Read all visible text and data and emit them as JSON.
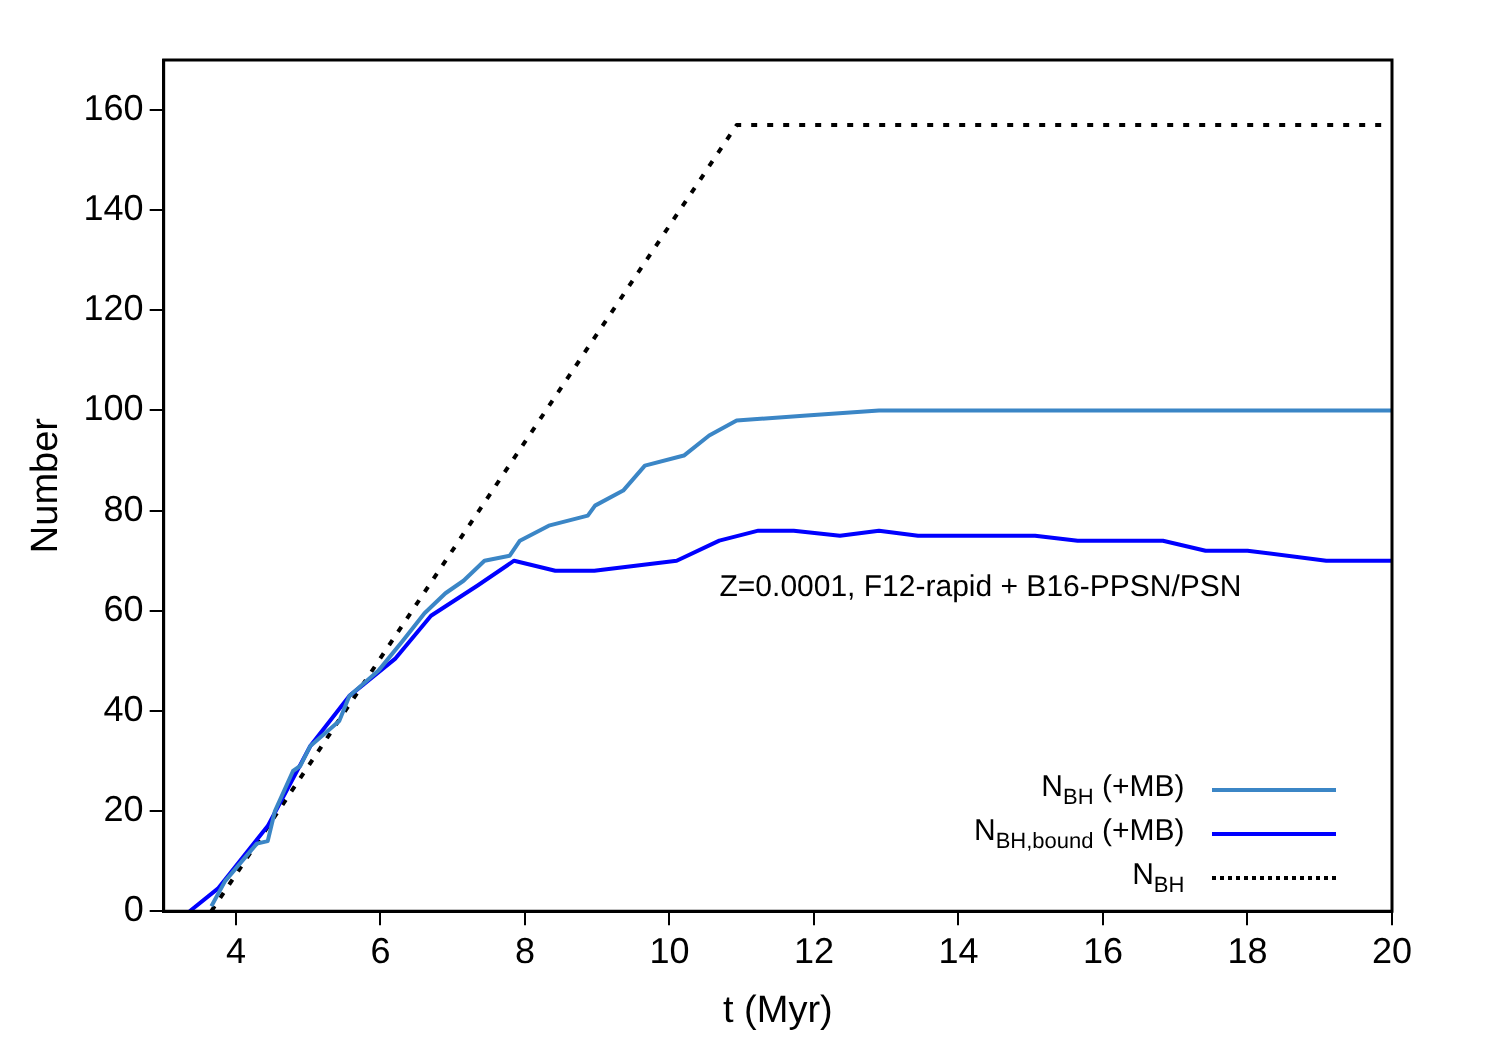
{
  "chart_data": {
    "type": "line",
    "xlabel": "t (Myr)",
    "ylabel": "Number",
    "xlim": [
      3,
      20
    ],
    "xticks": [
      4,
      6,
      8,
      10,
      12,
      14,
      16,
      18,
      20
    ],
    "ylim": [
      0,
      170
    ],
    "yticks": [
      0,
      20,
      40,
      60,
      80,
      100,
      120,
      140,
      160
    ],
    "legend": "bottom right",
    "annotations": [
      "Z=0.0001, F12-rapid + B16-PPSN/PSN"
    ],
    "series": [
      {
        "name": "N$_{BH}$ (+MB)",
        "color": "#3b86c6",
        "line_style": "solid",
        "x": [
          3.66,
          3.85,
          4.29,
          4.44,
          4.54,
          4.79,
          4.89,
          5.03,
          5.43,
          5.57,
          5.97,
          6.31,
          6.61,
          6.9,
          7.15,
          7.44,
          7.79,
          7.93,
          8.33,
          8.87,
          8.97,
          9.36,
          9.66,
          10.2,
          10.55,
          10.93,
          11.9,
          12.9,
          20
        ],
        "values": [
          1,
          6,
          13.5,
          14,
          20,
          28,
          29,
          33,
          38,
          43,
          48,
          54,
          59.5,
          63.5,
          66,
          70,
          71,
          74,
          77,
          79,
          81,
          84,
          89,
          91,
          95,
          98,
          99,
          100,
          100
        ]
      },
      {
        "name": "N$_{BH,bound}$ (+MB)",
        "color": "#0000ff",
        "line_style": "solid",
        "x": [
          3.36,
          3.75,
          4.44,
          5.03,
          5.57,
          6.21,
          6.7,
          7.34,
          7.85,
          8.42,
          8.96,
          10.1,
          10.69,
          11.23,
          11.72,
          12.36,
          12.9,
          13.44,
          15.06,
          15.65,
          16.83,
          17.42,
          18.0,
          19.09,
          20
        ],
        "values": [
          0,
          4.5,
          17,
          33,
          43,
          50.5,
          59,
          65,
          70,
          68,
          68,
          70,
          74,
          76,
          76,
          75,
          76,
          75,
          75,
          74,
          74,
          72,
          72,
          70,
          70
        ]
      },
      {
        "name": "N$_{BH}$",
        "color": "#000000",
        "line_style": "dotted",
        "x": [
          3.66,
          10.93,
          20
        ],
        "values": [
          0,
          157,
          157
        ]
      }
    ]
  }
}
